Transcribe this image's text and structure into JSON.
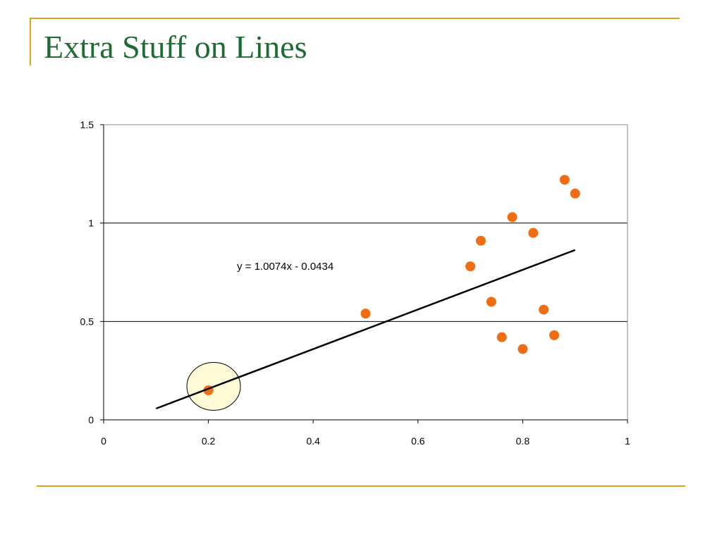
{
  "slide": {
    "title": "Extra Stuff on Lines"
  },
  "colors": {
    "accent": "#d9a520",
    "title": "#1f6b35",
    "points": "#f26c11",
    "highlight_fill": "#fefbd6"
  },
  "chart_data": {
    "type": "scatter",
    "title": "",
    "xlabel": "",
    "ylabel": "",
    "xlim": [
      0,
      1
    ],
    "ylim": [
      0,
      1.5
    ],
    "x_ticks": [
      0,
      0.2,
      0.4,
      0.6,
      0.8,
      1
    ],
    "x_tick_labels": [
      "0",
      "0.2",
      "0.4",
      "0.6",
      "0.8",
      "1"
    ],
    "y_ticks": [
      0,
      0.5,
      1,
      1.5
    ],
    "y_tick_labels": [
      "0",
      "0.5",
      "1",
      "1.5"
    ],
    "grid": "horizontal",
    "legend": "none",
    "points": [
      {
        "x": 0.2,
        "y": 0.15
      },
      {
        "x": 0.5,
        "y": 0.54
      },
      {
        "x": 0.7,
        "y": 0.78
      },
      {
        "x": 0.72,
        "y": 0.91
      },
      {
        "x": 0.74,
        "y": 0.6
      },
      {
        "x": 0.76,
        "y": 0.42
      },
      {
        "x": 0.78,
        "y": 1.03
      },
      {
        "x": 0.8,
        "y": 0.36
      },
      {
        "x": 0.82,
        "y": 0.95
      },
      {
        "x": 0.84,
        "y": 0.56
      },
      {
        "x": 0.86,
        "y": 0.43
      },
      {
        "x": 0.88,
        "y": 1.22
      },
      {
        "x": 0.9,
        "y": 1.15
      }
    ],
    "trendline": {
      "slope": 1.0074,
      "intercept": -0.0434,
      "x_range": [
        0.1,
        0.9
      ],
      "equation_label": "y = 1.0074x - 0.0434"
    },
    "highlight": {
      "x": 0.21,
      "y": 0.17
    }
  }
}
